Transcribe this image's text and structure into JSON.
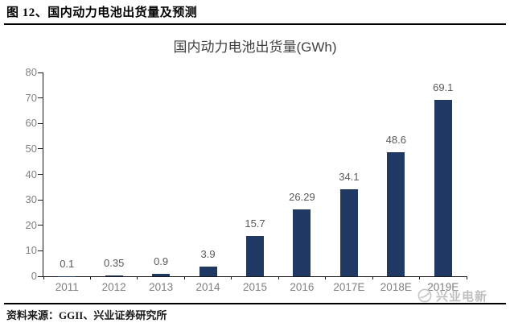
{
  "figure": {
    "header": "图 12、国内动力电池出货量及预测",
    "source": "资料来源：GGII、兴业证券研究所",
    "watermark": "兴业电新"
  },
  "chart_data": {
    "type": "bar",
    "title": "国内动力电池出货量(GWh)",
    "categories": [
      "2011",
      "2012",
      "2013",
      "2014",
      "2015",
      "2016",
      "2017E",
      "2018E",
      "2019E"
    ],
    "values": [
      0.1,
      0.35,
      0.9,
      3.9,
      15.7,
      26.29,
      34.1,
      48.6,
      69.1
    ],
    "data_labels": [
      "0.1",
      "0.35",
      "0.9",
      "3.9",
      "15.7",
      "26.29",
      "34.1",
      "48.6",
      "69.1"
    ],
    "ylabel": "",
    "xlabel": "",
    "ylim": [
      0,
      80
    ],
    "ytick_step": 10,
    "grid": false,
    "legend": "none",
    "bar_color": "#1f3864",
    "axis_color": "#1a1a1a",
    "axis_label_color": "#7f7f7f",
    "data_label_color": "#595959"
  }
}
